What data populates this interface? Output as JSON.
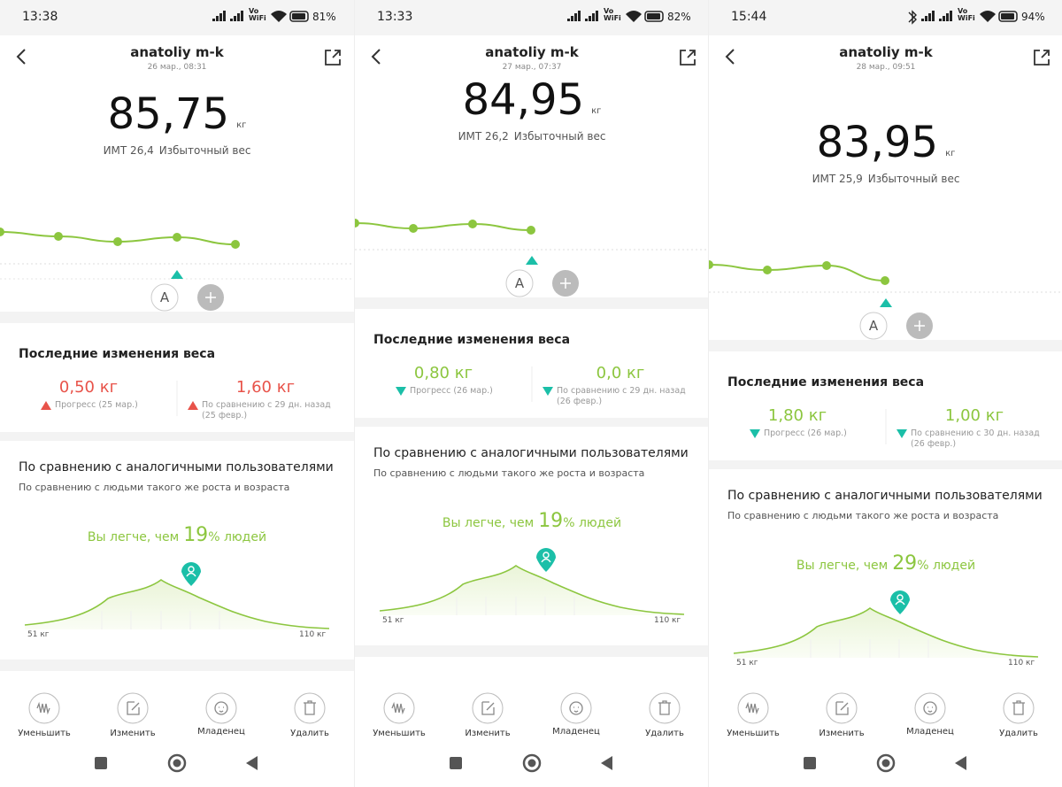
{
  "panels": [
    {
      "status": {
        "time": "13:38",
        "network": "Vo WiFi",
        "battery": "81%"
      },
      "header": {
        "name": "anatoliy m-k",
        "date": "26 мар., 08:31"
      },
      "weight": {
        "value": "85,75",
        "unit": "кг"
      },
      "bmi": {
        "label": "ИМТ 26,4",
        "status": "Избыточный вес"
      },
      "profile": "A",
      "changes": {
        "title": "Последние изменения веса",
        "items": [
          {
            "value": "0,50 кг",
            "label": "Прогресс (25 мар.)",
            "trend": "up"
          },
          {
            "value": "1,60 кг",
            "label": "По сравнению с 29 дн. назад (25 февр.)",
            "trend": "up"
          }
        ]
      },
      "comparison": {
        "title": "По сравнению с аналогичными пользователями",
        "subtitle": "По сравнению с людьми такого же роста и возраста",
        "result_prefix": "Вы легче, чем",
        "result_value": "19",
        "result_suffix": "% людей",
        "axis_min": "51 кг",
        "axis_max": "110 кг"
      },
      "actions": [
        "Уменьшить",
        "Изменить",
        "Младенец",
        "Удалить"
      ]
    },
    {
      "status": {
        "time": "13:33",
        "network": "Vo WiFi",
        "battery": "82%"
      },
      "header": {
        "name": "anatoliy m-k",
        "date": "27 мар., 07:37"
      },
      "weight": {
        "value": "84,95",
        "unit": "кг"
      },
      "bmi": {
        "label": "ИМТ 26,2",
        "status": "Избыточный вес"
      },
      "profile": "A",
      "changes": {
        "title": "Последние изменения веса",
        "items": [
          {
            "value": "0,80 кг",
            "label": "Прогресс (26 мар.)",
            "trend": "down"
          },
          {
            "value": "0,0 кг",
            "label": "По сравнению с 29 дн. назад (26 февр.)",
            "trend": "down"
          }
        ]
      },
      "comparison": {
        "title": "По сравнению с аналогичными пользователями",
        "subtitle": "По сравнению с людьми такого же роста и возраста",
        "result_prefix": "Вы легче, чем",
        "result_value": "19",
        "result_suffix": "% людей",
        "axis_min": "51 кг",
        "axis_max": "110 кг"
      },
      "actions": [
        "Уменьшить",
        "Изменить",
        "Младенец",
        "Удалить"
      ]
    },
    {
      "status": {
        "time": "15:44",
        "network": "Vo WiFi",
        "battery": "94%"
      },
      "header": {
        "name": "anatoliy m-k",
        "date": "28 мар., 09:51"
      },
      "weight": {
        "value": "83,95",
        "unit": "кг"
      },
      "bmi": {
        "label": "ИМТ 25,9",
        "status": "Избыточный вес"
      },
      "profile": "A",
      "changes": {
        "title": "Последние изменения веса",
        "items": [
          {
            "value": "1,80 кг",
            "label": "Прогресс (26 мар.)",
            "trend": "down"
          },
          {
            "value": "1,00 кг",
            "label": "По сравнению с 30 дн. назад (26 февр.)",
            "trend": "down"
          }
        ]
      },
      "comparison": {
        "title": "По сравнению с аналогичными пользователями",
        "subtitle": "По сравнению с людьми такого же роста и возраста",
        "result_prefix": "Вы легче, чем",
        "result_value": "29",
        "result_suffix": "% людей",
        "axis_min": "51 кг",
        "axis_max": "110 кг"
      },
      "actions": [
        "Уменьшить",
        "Изменить",
        "Младенец",
        "Удалить"
      ]
    }
  ]
}
